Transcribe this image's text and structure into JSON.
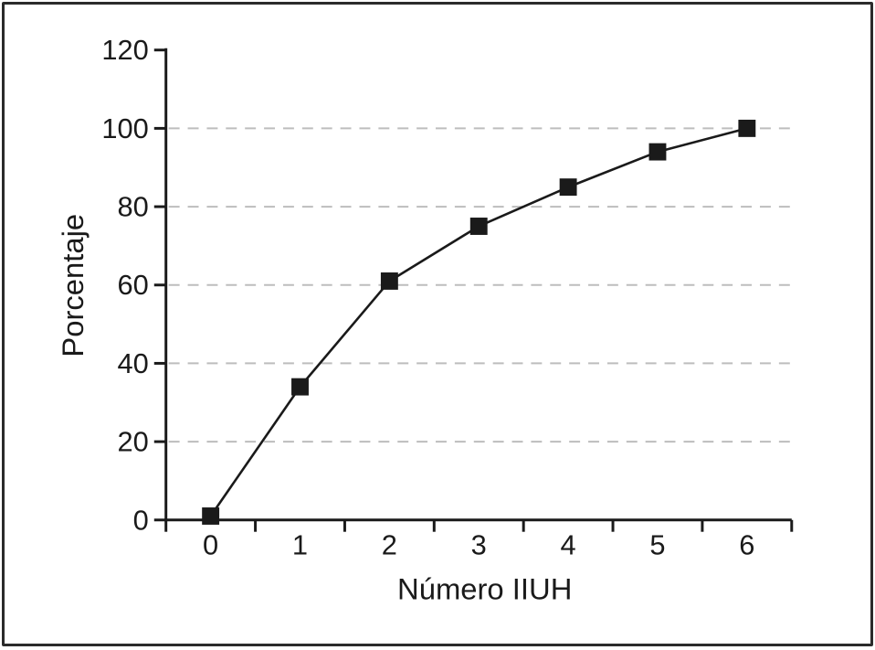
{
  "figure": {
    "background": "#ffffff",
    "border_color": "#2b2b2b"
  },
  "chart_data": {
    "type": "line",
    "title": "",
    "xlabel": "Número IIUH",
    "ylabel": "Porcentaje",
    "categories": [
      "0",
      "1",
      "2",
      "3",
      "4",
      "5",
      "6"
    ],
    "values": [
      1,
      34,
      61,
      75,
      85,
      94,
      100
    ],
    "ylim": [
      0,
      120
    ],
    "ytick_step": 20,
    "ytick_labels": [
      "0",
      "20",
      "40",
      "60",
      "80",
      "100",
      "120"
    ],
    "grid": {
      "visible": true,
      "at": [
        20,
        40,
        60,
        80,
        100
      ],
      "style": "dashed",
      "color": "#bdbdbd"
    },
    "legend": "none",
    "marker": "filled-square",
    "line_color": "#1a1a1a",
    "marker_color": "#1a1a1a",
    "axis_color": "#1a1a1a"
  }
}
